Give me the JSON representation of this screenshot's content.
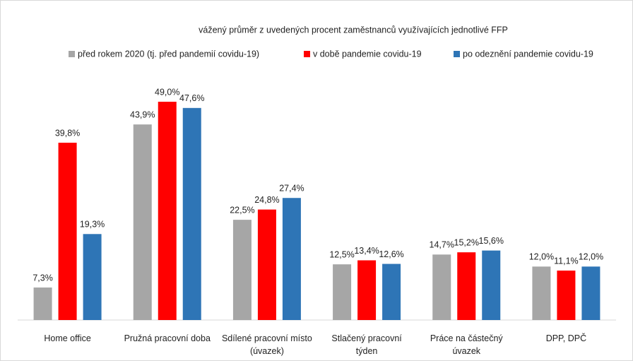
{
  "chart_data": {
    "type": "bar",
    "title": "vážený průměr z uvedených procent zaměstnanců využívajících jednotlivé FFP",
    "categories": [
      "Home office",
      "Pružná pracovní doba",
      "Sdílené pracovní místo (úvazek)",
      "Stlačený pracovní týden",
      "Práce na částečný úvazek",
      "DPP, DPČ"
    ],
    "series": [
      {
        "name": "před rokem 2020 (tj. před pandemií covidu-19)",
        "color": "#a6a6a6",
        "values": [
          7.3,
          43.9,
          22.5,
          12.5,
          14.7,
          12.0
        ],
        "value_labels": [
          "7,3%",
          "43,9%",
          "22,5%",
          "12,5%",
          "14,7%",
          "12,0%"
        ]
      },
      {
        "name": "v době pandemie covidu-19",
        "color": "#ff0000",
        "values": [
          39.8,
          49.0,
          24.8,
          13.4,
          15.2,
          11.1
        ],
        "value_labels": [
          "39,8%",
          "49,0%",
          "24,8%",
          "13,4%",
          "15,2%",
          "11,1%"
        ]
      },
      {
        "name": "po odeznění pandemie covidu-19",
        "color": "#2e75b6",
        "values": [
          19.3,
          47.6,
          27.4,
          12.6,
          15.6,
          12.0
        ],
        "value_labels": [
          "19,3%",
          "47,6%",
          "27,4%",
          "12,6%",
          "15,6%",
          "12,0%"
        ]
      }
    ]
  }
}
